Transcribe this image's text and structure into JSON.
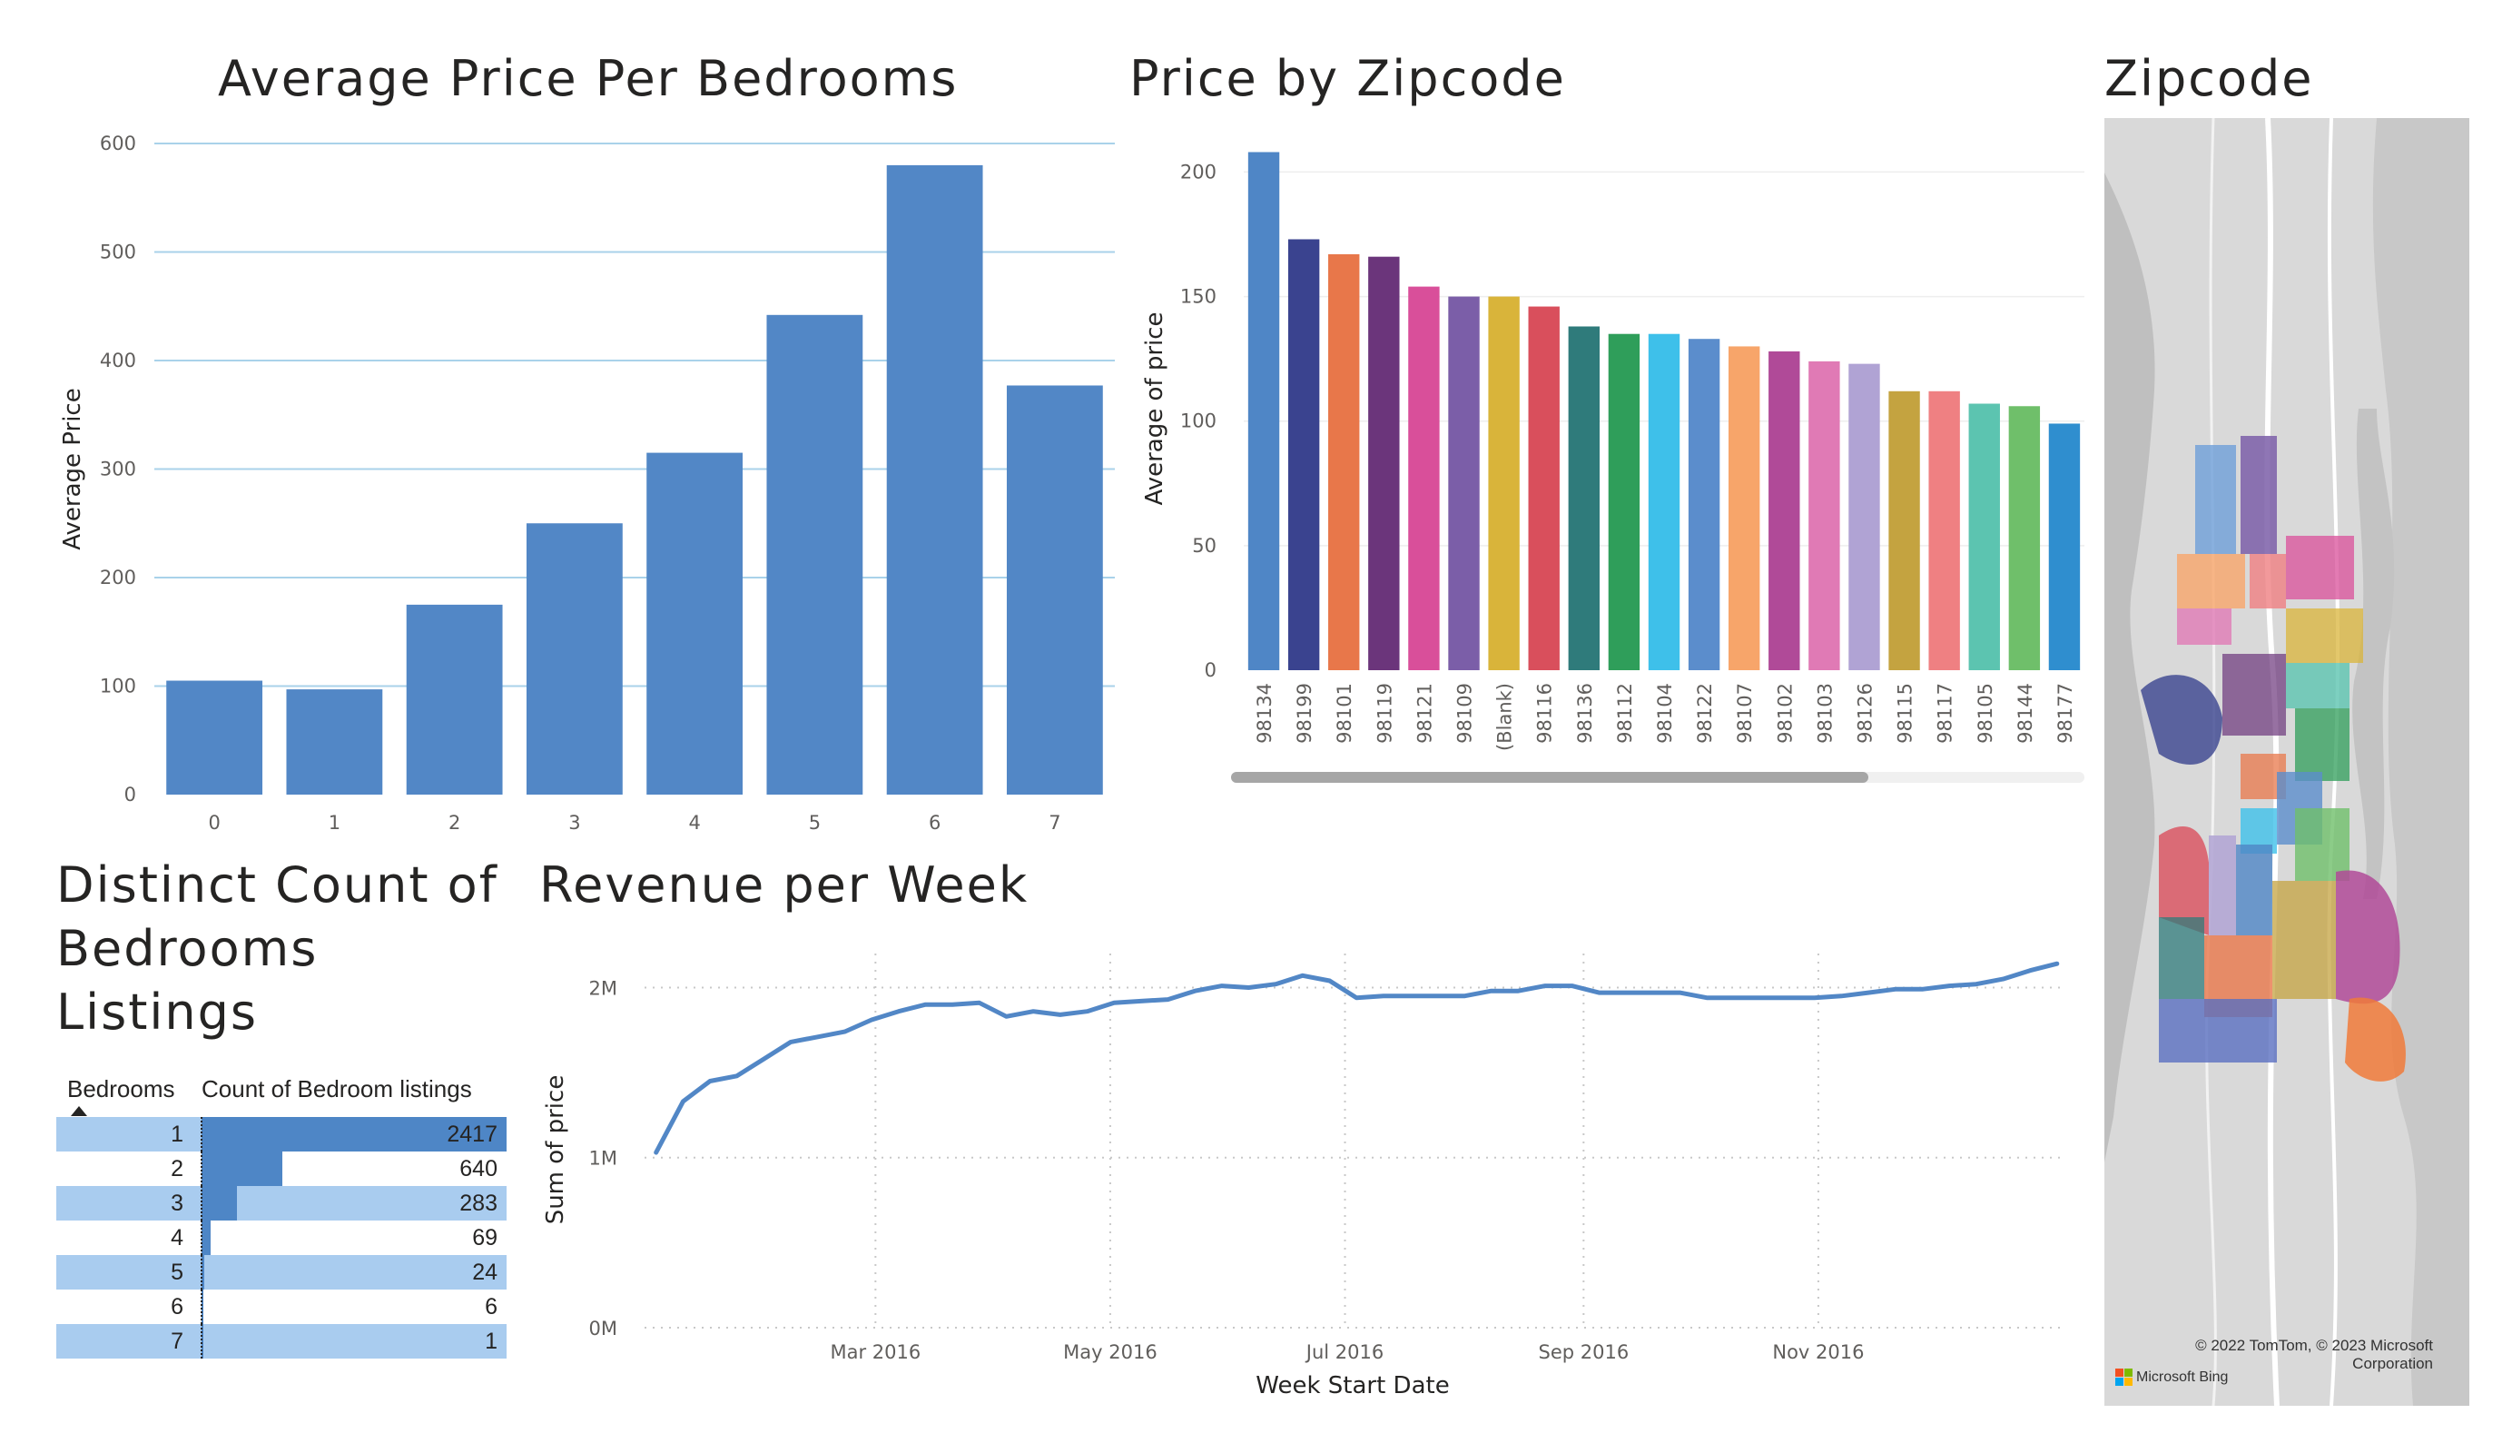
{
  "titles": {
    "bedrooms_chart": "Average Price Per Bedrooms",
    "zipcode_chart": "Price by Zipcode",
    "map": "Zipcode",
    "table": "Distinct Count of Bedrooms Listings",
    "revenue_chart": "Revenue per Week"
  },
  "table": {
    "col_bedrooms": "Bedrooms",
    "col_count": "Count of Bedroom listings",
    "max": 2417,
    "rows": [
      {
        "bedrooms": "1",
        "count": "2417",
        "value": 2417
      },
      {
        "bedrooms": "2",
        "count": "640",
        "value": 640
      },
      {
        "bedrooms": "3",
        "count": "283",
        "value": 283
      },
      {
        "bedrooms": "4",
        "count": "69",
        "value": 69
      },
      {
        "bedrooms": "5",
        "count": "24",
        "value": 24
      },
      {
        "bedrooms": "6",
        "count": "6",
        "value": 6
      },
      {
        "bedrooms": "7",
        "count": "1",
        "value": 1
      }
    ]
  },
  "map": {
    "attribution_line1": "© 2022 TomTom, © 2023 Microsoft",
    "attribution_line2": "Corporation",
    "bing": "Microsoft Bing"
  },
  "chart_data": [
    {
      "id": "bedrooms",
      "type": "bar",
      "title": "Average Price Per Bedrooms",
      "xlabel": "",
      "ylabel": "Average Price",
      "categories": [
        "0",
        "1",
        "2",
        "3",
        "4",
        "5",
        "6",
        "7"
      ],
      "values": [
        105,
        97,
        175,
        250,
        315,
        442,
        580,
        377
      ],
      "ylim": [
        0,
        600
      ],
      "yticks": [
        0,
        100,
        200,
        300,
        400,
        500,
        600
      ],
      "color": "#5287c6",
      "grid": true
    },
    {
      "id": "zipcode",
      "type": "bar",
      "title": "Price by Zipcode",
      "xlabel": "",
      "ylabel": "Average of price",
      "categories": [
        "98134",
        "98199",
        "98101",
        "98119",
        "98121",
        "98109",
        "(Blank)",
        "98116",
        "98136",
        "98112",
        "98104",
        "98122",
        "98107",
        "98102",
        "98103",
        "98126",
        "98115",
        "98117",
        "98105",
        "98144",
        "98177"
      ],
      "values": [
        208,
        173,
        167,
        166,
        154,
        150,
        150,
        146,
        138,
        135,
        135,
        133,
        130,
        128,
        124,
        123,
        112,
        112,
        107,
        106,
        99
      ],
      "colors": [
        "#4f86c6",
        "#3a438f",
        "#e8774a",
        "#6b357b",
        "#d94f9a",
        "#7b5ea8",
        "#d9b43a",
        "#d94f5c",
        "#2f7b7b",
        "#2f9e5a",
        "#3ec0ea",
        "#5b8dcc",
        "#f7a56a",
        "#b04a98",
        "#e07ab5",
        "#b0a3d4",
        "#c4a340",
        "#ef8082",
        "#5cc4b0",
        "#6fbf6a",
        "#2f8ecf"
      ],
      "ylim": [
        0,
        210
      ],
      "yticks": [
        0,
        50,
        100,
        150,
        200
      ],
      "grid": true
    },
    {
      "id": "revenue",
      "type": "line",
      "title": "Revenue per Week",
      "xlabel": "Week Start Date",
      "ylabel": "Sum of price",
      "x": [
        "2016-01-04",
        "2016-01-11",
        "2016-01-18",
        "2016-01-25",
        "2016-02-01",
        "2016-02-08",
        "2016-02-15",
        "2016-02-22",
        "2016-02-29",
        "2016-03-07",
        "2016-03-14",
        "2016-03-21",
        "2016-03-28",
        "2016-04-04",
        "2016-04-11",
        "2016-04-18",
        "2016-04-25",
        "2016-05-02",
        "2016-05-09",
        "2016-05-16",
        "2016-05-23",
        "2016-05-30",
        "2016-06-06",
        "2016-06-13",
        "2016-06-20",
        "2016-06-27",
        "2016-07-04",
        "2016-07-11",
        "2016-07-18",
        "2016-07-25",
        "2016-08-01",
        "2016-08-08",
        "2016-08-15",
        "2016-08-22",
        "2016-08-29",
        "2016-09-05",
        "2016-09-12",
        "2016-09-19",
        "2016-09-26",
        "2016-10-03",
        "2016-10-10",
        "2016-10-17",
        "2016-10-24",
        "2016-10-31",
        "2016-11-07",
        "2016-11-14",
        "2016-11-21",
        "2016-11-28",
        "2016-12-05",
        "2016-12-12",
        "2016-12-19",
        "2016-12-26",
        "2017-01-02"
      ],
      "values": [
        1.03,
        1.33,
        1.45,
        1.48,
        1.58,
        1.68,
        1.71,
        1.74,
        1.81,
        1.86,
        1.9,
        1.9,
        1.91,
        1.83,
        1.86,
        1.84,
        1.86,
        1.91,
        1.92,
        1.93,
        1.98,
        2.01,
        2.0,
        2.02,
        2.07,
        2.04,
        1.94,
        1.95,
        1.95,
        1.95,
        1.95,
        1.98,
        1.98,
        2.01,
        2.01,
        1.97,
        1.97,
        1.97,
        1.97,
        1.94,
        1.94,
        1.94,
        1.94,
        1.94,
        1.95,
        1.97,
        1.99,
        1.99,
        2.01,
        2.02,
        2.05,
        2.1,
        2.14
      ],
      "ylim": [
        0,
        2.2
      ],
      "yticks": [
        {
          "v": 0,
          "label": "0M"
        },
        {
          "v": 1,
          "label": "1M"
        },
        {
          "v": 2,
          "label": "2M"
        }
      ],
      "xticks": [
        {
          "date": "2016-03-01",
          "label": "Mar 2016"
        },
        {
          "date": "2016-05-01",
          "label": "May 2016"
        },
        {
          "date": "2016-07-01",
          "label": "Jul 2016"
        },
        {
          "date": "2016-09-01",
          "label": "Sep 2016"
        },
        {
          "date": "2016-11-01",
          "label": "Nov 2016"
        }
      ],
      "xlim": [
        "2016-01-01",
        "2017-01-03"
      ],
      "color": "#5287c6",
      "grid": true
    }
  ]
}
